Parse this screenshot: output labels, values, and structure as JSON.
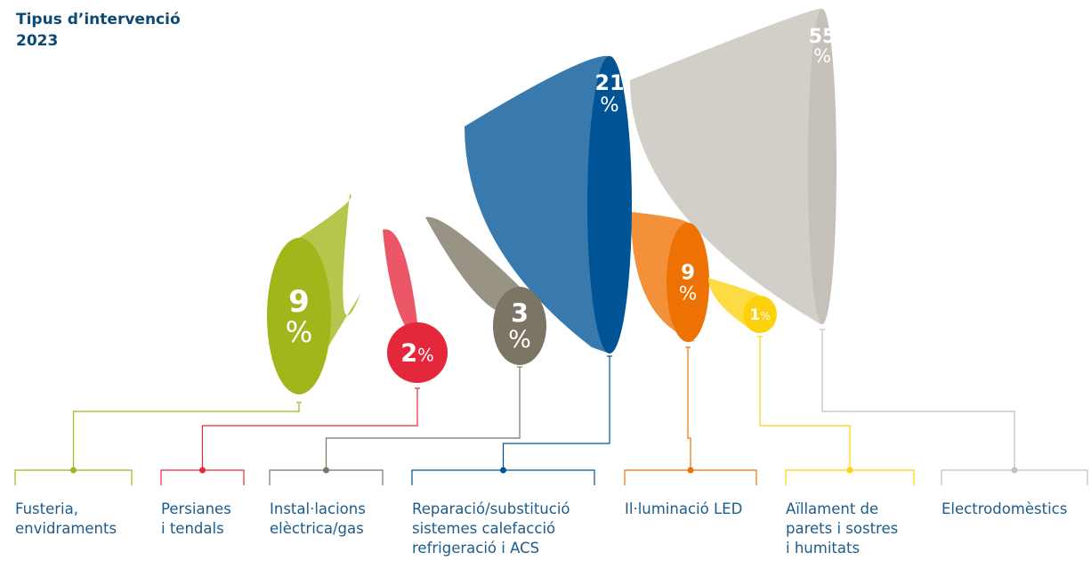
{
  "chart_data": {
    "type": "bar",
    "title": "Tipus d’intervenció",
    "subtitle": "2023",
    "unit": "%",
    "categories": [
      "Fusteria,|envidraments",
      "Persianes|i tendals",
      "Instal·lacions|elèctrica/gas",
      "Reparació/substitució|sistemes calefacció|refrigeració i ACS",
      "Il·luminació LED",
      "Aïllament de|parets i sostres|i humitats",
      "Electrodomèstics"
    ],
    "values": [
      9,
      2,
      3,
      21,
      9,
      1,
      55
    ],
    "colors": [
      "#a2b51a",
      "#e5273b",
      "#7c7464",
      "#005496",
      "#ee7203",
      "#fdd10e",
      "#c5c0b9"
    ]
  }
}
